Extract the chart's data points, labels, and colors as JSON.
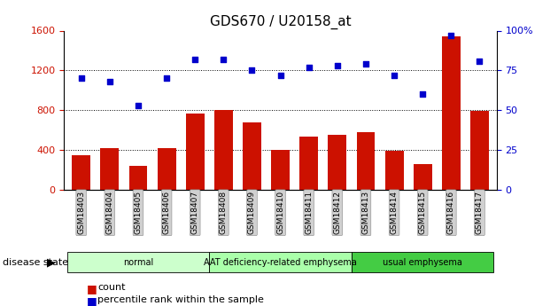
{
  "title": "GDS670 / U20158_at",
  "categories": [
    "GSM18403",
    "GSM18404",
    "GSM18405",
    "GSM18406",
    "GSM18407",
    "GSM18408",
    "GSM18409",
    "GSM18410",
    "GSM18411",
    "GSM18412",
    "GSM18413",
    "GSM18414",
    "GSM18415",
    "GSM18416",
    "GSM18417"
  ],
  "bar_values": [
    350,
    420,
    240,
    420,
    770,
    800,
    680,
    400,
    530,
    550,
    580,
    390,
    260,
    1540,
    790
  ],
  "scatter_values": [
    70,
    68,
    53,
    70,
    82,
    82,
    75,
    72,
    77,
    78,
    79,
    72,
    60,
    97,
    81
  ],
  "bar_color": "#cc1100",
  "scatter_color": "#0000cc",
  "left_ylim": [
    0,
    1600
  ],
  "right_ylim": [
    0,
    100
  ],
  "left_yticks": [
    0,
    400,
    800,
    1200,
    1600
  ],
  "right_yticks": [
    0,
    25,
    50,
    75,
    100
  ],
  "right_yticklabels": [
    "0",
    "25",
    "50",
    "75",
    "100%"
  ],
  "hline_values": [
    400,
    800,
    1200
  ],
  "group_defs": [
    [
      0,
      5,
      "#ccffcc",
      "normal"
    ],
    [
      5,
      10,
      "#aaffaa",
      "AAT deficiency-related emphysema"
    ],
    [
      10,
      15,
      "#44cc44",
      "usual emphysema"
    ]
  ],
  "xlabel_disease": "disease state",
  "legend_count": "count",
  "legend_percentile": "percentile rank within the sample",
  "title_fontsize": 11,
  "tick_fontsize": 8
}
